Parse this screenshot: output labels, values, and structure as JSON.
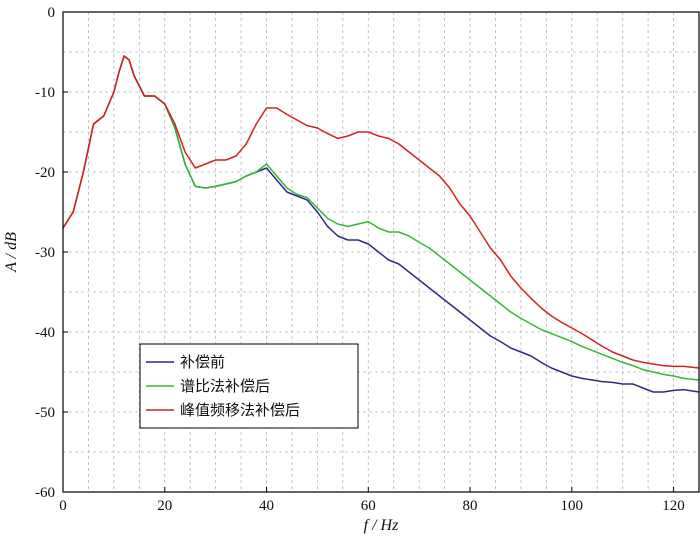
{
  "chart_data": {
    "type": "line",
    "xlabel": "f / Hz",
    "ylabel": "A / dB",
    "xlim": [
      0,
      125
    ],
    "ylim": [
      -60,
      0
    ],
    "x_ticks": [
      0,
      20,
      40,
      60,
      80,
      100,
      120
    ],
    "y_ticks": [
      0,
      -10,
      -20,
      -30,
      -40,
      -50,
      -60
    ],
    "x_minor_step": 5,
    "y_minor_step": 5,
    "grid": true,
    "legend_position": "lower-left",
    "series": [
      {
        "name": "补偿前",
        "color": "#2b2b8c",
        "x": [
          0,
          2,
          4,
          6,
          8,
          10,
          11,
          12,
          13,
          14,
          16,
          18,
          20,
          22,
          24,
          26,
          28,
          30,
          32,
          34,
          36,
          38,
          40,
          42,
          44,
          46,
          48,
          50,
          52,
          54,
          56,
          58,
          60,
          62,
          64,
          66,
          68,
          70,
          72,
          74,
          76,
          78,
          80,
          82,
          84,
          86,
          88,
          90,
          92,
          94,
          96,
          98,
          100,
          102,
          104,
          106,
          108,
          110,
          112,
          114,
          116,
          118,
          120,
          122,
          125
        ],
        "y": [
          -27,
          -25,
          -20,
          -14,
          -13,
          -10,
          -7.5,
          -5.5,
          -6,
          -8,
          -10.5,
          -10.5,
          -11.5,
          -14.5,
          -19,
          -21.8,
          -22,
          -21.8,
          -21.5,
          -21.2,
          -20.5,
          -20,
          -19.5,
          -21,
          -22.5,
          -23,
          -23.5,
          -25,
          -26.8,
          -28,
          -28.5,
          -28.5,
          -29,
          -30,
          -31,
          -31.5,
          -32.5,
          -33.5,
          -34.5,
          -35.5,
          -36.5,
          -37.5,
          -38.5,
          -39.5,
          -40.5,
          -41.2,
          -42,
          -42.5,
          -43,
          -43.8,
          -44.5,
          -45,
          -45.5,
          -45.8,
          -46,
          -46.2,
          -46.3,
          -46.5,
          -46.5,
          -47,
          -47.5,
          -47.5,
          -47.3,
          -47.2,
          -47.5
        ]
      },
      {
        "name": "谱比法补偿后",
        "color": "#33b833",
        "x": [
          0,
          2,
          4,
          6,
          8,
          10,
          11,
          12,
          13,
          14,
          16,
          18,
          20,
          22,
          24,
          26,
          28,
          30,
          32,
          34,
          36,
          38,
          40,
          42,
          44,
          46,
          48,
          50,
          52,
          54,
          56,
          58,
          60,
          62,
          64,
          66,
          68,
          70,
          72,
          74,
          76,
          78,
          80,
          82,
          84,
          86,
          88,
          90,
          92,
          94,
          96,
          98,
          100,
          102,
          104,
          106,
          108,
          110,
          112,
          114,
          116,
          118,
          120,
          122,
          125
        ],
        "y": [
          -27,
          -25,
          -20,
          -14,
          -13,
          -10,
          -7.5,
          -5.5,
          -6,
          -8,
          -10.5,
          -10.5,
          -11.5,
          -14.5,
          -19,
          -21.8,
          -22,
          -21.8,
          -21.5,
          -21.2,
          -20.5,
          -20,
          -19,
          -20.5,
          -22,
          -22.8,
          -23.2,
          -24.5,
          -25.8,
          -26.5,
          -26.8,
          -26.5,
          -26.2,
          -27,
          -27.5,
          -27.5,
          -28,
          -28.8,
          -29.5,
          -30.5,
          -31.5,
          -32.5,
          -33.5,
          -34.5,
          -35.5,
          -36.5,
          -37.5,
          -38.3,
          -39,
          -39.7,
          -40.2,
          -40.7,
          -41.2,
          -41.8,
          -42.3,
          -42.8,
          -43.3,
          -43.8,
          -44.2,
          -44.7,
          -45,
          -45.3,
          -45.5,
          -45.8,
          -46
        ]
      },
      {
        "name": "峰值频移法补偿后",
        "color": "#d42020",
        "x": [
          0,
          2,
          4,
          6,
          8,
          10,
          11,
          12,
          13,
          14,
          16,
          18,
          20,
          22,
          24,
          26,
          28,
          30,
          32,
          34,
          36,
          38,
          40,
          42,
          44,
          46,
          48,
          50,
          52,
          54,
          56,
          58,
          60,
          62,
          64,
          66,
          68,
          70,
          72,
          74,
          76,
          78,
          80,
          82,
          84,
          86,
          88,
          90,
          92,
          94,
          96,
          98,
          100,
          102,
          104,
          106,
          108,
          110,
          112,
          114,
          116,
          118,
          120,
          122,
          125
        ],
        "y": [
          -27,
          -25,
          -20,
          -14,
          -13,
          -10,
          -7.5,
          -5.5,
          -6,
          -8,
          -10.5,
          -10.5,
          -11.5,
          -14,
          -17.5,
          -19.5,
          -19,
          -18.5,
          -18.5,
          -18,
          -16.5,
          -14,
          -12,
          -12,
          -12.8,
          -13.5,
          -14.2,
          -14.5,
          -15.2,
          -15.8,
          -15.5,
          -15,
          -15,
          -15.5,
          -15.8,
          -16.5,
          -17.5,
          -18.5,
          -19.5,
          -20.5,
          -22,
          -24,
          -25.5,
          -27.5,
          -29.5,
          -31,
          -33,
          -34.5,
          -35.8,
          -37,
          -38,
          -38.8,
          -39.5,
          -40.2,
          -41,
          -41.8,
          -42.5,
          -43,
          -43.5,
          -43.8,
          -44,
          -44.2,
          -44.3,
          -44.3,
          -44.5
        ]
      }
    ]
  }
}
